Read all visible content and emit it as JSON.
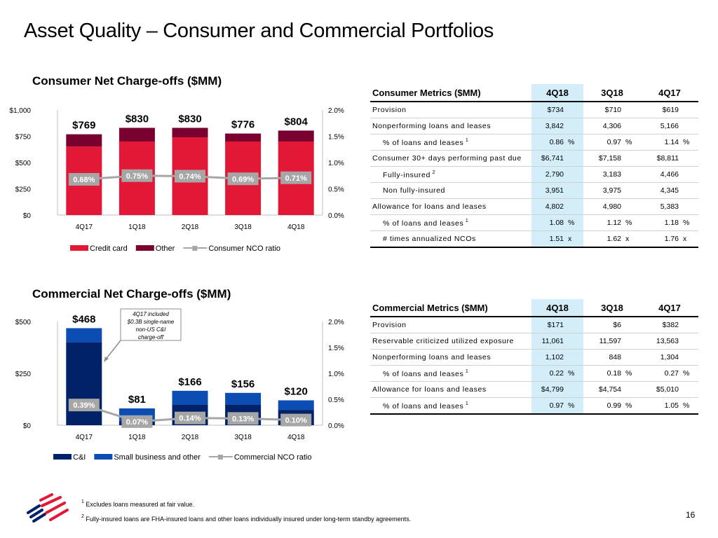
{
  "page": {
    "title": "Asset Quality – Consumer and Commercial Portfolios",
    "page_number": "16"
  },
  "colors": {
    "credit_card": "#E31837",
    "consumer_other": "#7A0030",
    "ci": "#012169",
    "small_business": "#0B4DB3",
    "ratio_line": "#A6A6A6",
    "highlight": "#D4EEF9"
  },
  "chart_data": [
    {
      "type": "bar",
      "stacked": true,
      "title": "Consumer Net Charge-offs ($MM)",
      "categories": [
        "4Q17",
        "1Q18",
        "2Q18",
        "3Q18",
        "4Q18"
      ],
      "series": [
        {
          "name": "Credit card",
          "values": [
            653,
            700,
            740,
            700,
            700
          ]
        },
        {
          "name": "Other",
          "values": [
            116,
            130,
            90,
            76,
            104
          ]
        }
      ],
      "totals": [
        769,
        830,
        830,
        776,
        804
      ],
      "total_labels": [
        "$769",
        "$830",
        "$830",
        "$776",
        "$804"
      ],
      "line_series": {
        "name": "Consumer NCO ratio",
        "values": [
          0.68,
          0.75,
          0.74,
          0.69,
          0.71
        ],
        "labels": [
          "0.68%",
          "0.75%",
          "0.74%",
          "0.69%",
          "0.71%"
        ]
      },
      "y_left": {
        "ticks": [
          0,
          250,
          500,
          750,
          1000
        ],
        "tick_labels": [
          "$0",
          "$250",
          "$500",
          "$750",
          "$1,000"
        ],
        "ylim": [
          0,
          1000
        ]
      },
      "y_right": {
        "ticks": [
          0,
          0.5,
          1.0,
          1.5,
          2.0
        ],
        "tick_labels": [
          "0.0%",
          "0.5%",
          "1.0%",
          "1.5%",
          "2.0%"
        ],
        "ylim": [
          0,
          2.0
        ]
      },
      "legend": [
        "Credit card",
        "Other",
        "Consumer NCO ratio"
      ],
      "legend_position": "bottom",
      "grid": false
    },
    {
      "type": "bar",
      "stacked": true,
      "title": "Commercial Net Charge-offs ($MM)",
      "categories": [
        "4Q17",
        "1Q18",
        "2Q18",
        "3Q18",
        "4Q18"
      ],
      "series": [
        {
          "name": "C&I",
          "values": [
            400,
            20,
            98,
            98,
            74
          ]
        },
        {
          "name": "Small business and other",
          "values": [
            68,
            61,
            68,
            58,
            46
          ]
        }
      ],
      "totals": [
        468,
        81,
        166,
        156,
        120
      ],
      "total_labels": [
        "$468",
        "$81",
        "$166",
        "$156",
        "$120"
      ],
      "line_series": {
        "name": "Commercial NCO ratio",
        "values": [
          0.39,
          0.07,
          0.14,
          0.13,
          0.1
        ],
        "labels": [
          "0.39%",
          "0.07%",
          "0.14%",
          "0.13%",
          "0.10%"
        ]
      },
      "y_left": {
        "ticks": [
          0,
          250,
          500
        ],
        "tick_labels": [
          "$0",
          "$250",
          "$500"
        ],
        "ylim": [
          0,
          500
        ]
      },
      "y_right": {
        "ticks": [
          0,
          0.5,
          1.0,
          1.5,
          2.0
        ],
        "tick_labels": [
          "0.0%",
          "0.5%",
          "1.0%",
          "1.5%",
          "2.0%"
        ],
        "ylim": [
          0,
          2.0
        ]
      },
      "legend": [
        "C&I",
        "Small business and other",
        "Commercial NCO ratio"
      ],
      "legend_position": "bottom",
      "annotation": [
        "4Q17 included",
        "$0.3B single-name",
        "non-US C&I",
        "charge-off"
      ],
      "grid": false
    }
  ],
  "consumer_metrics": {
    "header": "Consumer Metrics ($MM)",
    "columns": [
      "4Q18",
      "3Q18",
      "4Q17"
    ],
    "rows": [
      {
        "label": "Provision",
        "sup": "",
        "indent": false,
        "values": [
          "$734",
          "$710",
          "$619"
        ],
        "unit": ""
      },
      {
        "label": "Nonperforming loans and leases",
        "sup": "",
        "indent": false,
        "values": [
          "3,842",
          "4,306",
          "5,166"
        ],
        "unit": ""
      },
      {
        "label": "% of loans and leases",
        "sup": "1",
        "indent": true,
        "values": [
          "0.86",
          "0.97",
          "1.14"
        ],
        "unit": "%"
      },
      {
        "label": "Consumer 30+ days performing past due",
        "sup": "",
        "indent": false,
        "values": [
          "$6,741",
          "$7,158",
          "$8,811"
        ],
        "unit": ""
      },
      {
        "label": "Fully-insured",
        "sup": "2",
        "indent": true,
        "values": [
          "2,790",
          "3,183",
          "4,466"
        ],
        "unit": ""
      },
      {
        "label": "Non fully-insured",
        "sup": "",
        "indent": true,
        "values": [
          "3,951",
          "3,975",
          "4,345"
        ],
        "unit": ""
      },
      {
        "label": "Allowance for loans and leases",
        "sup": "",
        "indent": false,
        "values": [
          "4,802",
          "4,980",
          "5,383"
        ],
        "unit": ""
      },
      {
        "label": "% of loans and leases",
        "sup": "1",
        "indent": true,
        "values": [
          "1.08",
          "1.12",
          "1.18"
        ],
        "unit": "%"
      },
      {
        "label": "# times annualized NCOs",
        "sup": "",
        "indent": true,
        "values": [
          "1.51",
          "1.62",
          "1.76"
        ],
        "unit": "x"
      }
    ]
  },
  "commercial_metrics": {
    "header": "Commercial Metrics ($MM)",
    "columns": [
      "4Q18",
      "3Q18",
      "4Q17"
    ],
    "rows": [
      {
        "label": "Provision",
        "sup": "",
        "indent": false,
        "values": [
          "$171",
          "$6",
          "$382"
        ],
        "unit": ""
      },
      {
        "label": "Reservable criticized utilized exposure",
        "sup": "",
        "indent": false,
        "values": [
          "11,061",
          "11,597",
          "13,563"
        ],
        "unit": ""
      },
      {
        "label": "Nonperforming loans and leases",
        "sup": "",
        "indent": false,
        "values": [
          "1,102",
          "848",
          "1,304"
        ],
        "unit": ""
      },
      {
        "label": "% of loans and leases",
        "sup": "1",
        "indent": true,
        "values": [
          "0.22",
          "0.18",
          "0.27"
        ],
        "unit": "%"
      },
      {
        "label": "Allowance for loans and leases",
        "sup": "",
        "indent": false,
        "values": [
          "$4,799",
          "$4,754",
          "$5,010"
        ],
        "unit": ""
      },
      {
        "label": "% of loans and leases",
        "sup": "1",
        "indent": true,
        "values": [
          "0.97",
          "0.99",
          "1.05"
        ],
        "unit": "%"
      }
    ]
  },
  "footnotes": [
    {
      "num": "1",
      "text": "Excludes loans measured at fair value."
    },
    {
      "num": "2",
      "text": "Fully-insured loans are FHA-insured loans and other loans individually insured under long-term standby agreements."
    }
  ]
}
